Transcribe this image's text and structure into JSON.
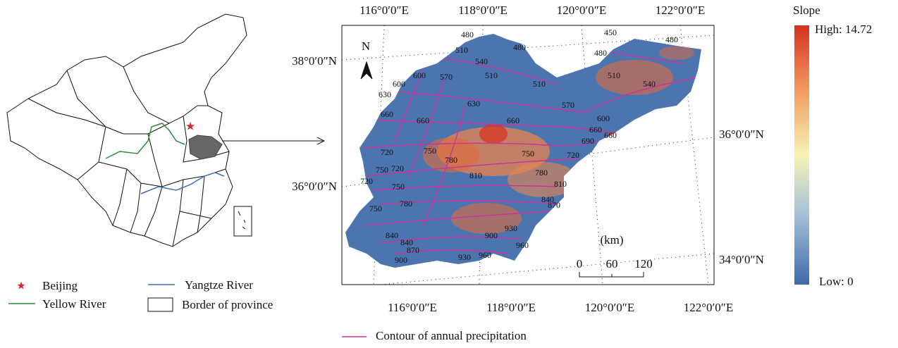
{
  "figure": {
    "top_axis": [
      "116°0′0″E",
      "118°0′0″E",
      "120°0′0″E",
      "122°0′0″E"
    ],
    "bottom_axis": [
      "116°0′0″E",
      "118°0′0″E",
      "120°0′0″E",
      "122°0′0″E"
    ],
    "left_axis": [
      "38°0′0″N",
      "36°0′0″N"
    ],
    "right_axis": [
      "36°0′0″N",
      "34°0′0″N"
    ],
    "north": "N",
    "scale": {
      "unit": "(km)",
      "ticks": [
        0,
        60,
        120
      ]
    },
    "colorbar": {
      "title": "Slope",
      "high": "High: 14.72",
      "low": "Low: 0"
    },
    "legend": [
      "Beijing",
      "Yangtze River",
      "Yellow River",
      "Border of province"
    ],
    "contour_legend": "Contour of annual precipitation",
    "contour_labels": [
      480,
      510,
      480,
      540,
      510,
      450,
      480,
      480,
      510,
      540,
      510,
      570,
      600,
      630,
      600,
      660,
      630,
      660,
      570,
      600,
      660,
      660,
      690,
      660,
      720,
      750,
      780,
      750,
      720,
      810,
      780,
      810,
      840,
      870,
      720,
      750,
      720,
      750,
      780,
      750,
      840,
      840,
      870,
      900,
      900,
      930,
      930,
      960,
      960
    ]
  }
}
